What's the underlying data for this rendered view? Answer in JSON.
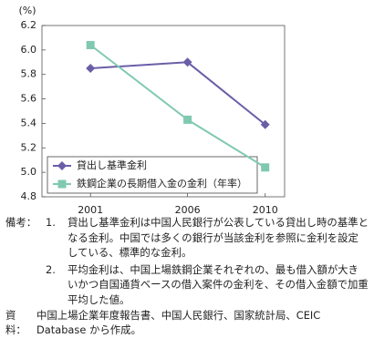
{
  "chart_data": {
    "type": "line",
    "y_label": "(%)",
    "x": [
      2001,
      2006,
      2010
    ],
    "xlim": [
      1998.5,
      2011
    ],
    "xticks": [
      2001,
      2006,
      2010
    ],
    "ylim": [
      4.8,
      6.2
    ],
    "yticks": [
      4.8,
      {
        "value": 5.0,
        "label": "5.0"
      },
      5.2,
      5.4,
      5.6,
      5.8,
      {
        "value": 6.0,
        "label": "6.0"
      },
      6.2
    ],
    "grid": false,
    "legend": "lower left",
    "series": [
      {
        "name": "貸出し基準金利",
        "color": "#6b5ea8",
        "marker": "diamond",
        "values": [
          5.85,
          5.9,
          5.39
        ]
      },
      {
        "name": "鉄鋼企業の長期借入金の金利（年率）",
        "color": "#80c9b1",
        "marker": "square",
        "values": [
          6.04,
          5.43,
          5.04
        ]
      }
    ]
  },
  "notes": {
    "label": "備考：",
    "items": [
      {
        "num": "1.",
        "text": "貸出し基準金利は中国人民銀行が公表している貸出し時の基準となる金利。中国では多くの銀行が当該金利を参照に金利を設定している、標準的な金利。"
      },
      {
        "num": "2.",
        "text": "平均金利は、中国上場鉄鋼企業それぞれの、最も借入額が大きいかつ自国通貨ベースの借入案件の金利を、その借入金額で加重平均した値。"
      }
    ]
  },
  "source": {
    "label": "資料：",
    "text": "中国上場企業年度報告書、中国人民銀行、国家統計局、CEIC Database から作成。"
  }
}
